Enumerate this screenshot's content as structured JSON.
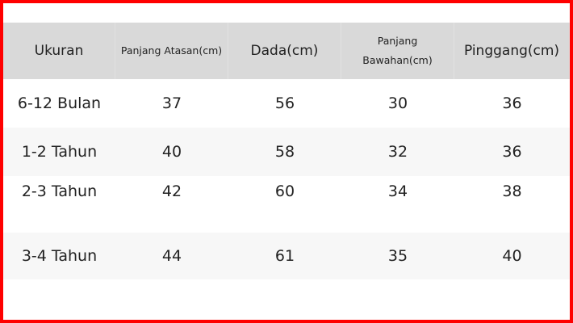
{
  "table": {
    "headers": [
      "Ukuran",
      "Panjang Atasan(cm)",
      "Dada(cm)",
      "Panjang Bawahan(cm)",
      "Pinggang(cm)"
    ],
    "rows": [
      [
        "6-12 Bulan",
        "37",
        "56",
        "30",
        "36"
      ],
      [
        "1-2 Tahun",
        "40",
        "58",
        "32",
        "36"
      ],
      [
        "2-3 Tahun",
        "42",
        "60",
        "34",
        "38"
      ],
      [
        "3-4 Tahun",
        "44",
        "61",
        "35",
        "40"
      ]
    ]
  },
  "colors": {
    "border": "#ff0000",
    "header_bg": "#d9d9d9",
    "stripe_bg": "#f7f7f7"
  }
}
